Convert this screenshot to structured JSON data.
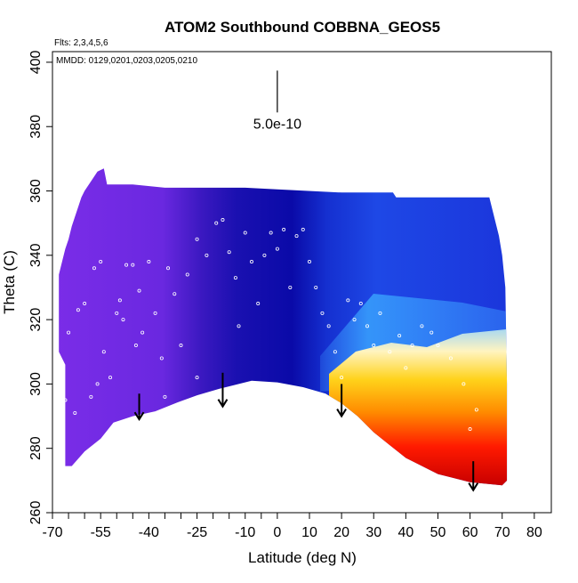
{
  "chart_data": {
    "type": "curtain",
    "title": "ATOM2 Southbound COBBNA_GEOS5",
    "annotations": [
      "Flts: 2,3,4,5,6",
      "MMDD: 0129,0201,0203,0205,0210"
    ],
    "xlabel": "Latitude (deg N)",
    "ylabel": "Theta (C)",
    "xlim": [
      -70,
      85.3
    ],
    "ylim": [
      260,
      403.3
    ],
    "xticks": [
      -70,
      -55,
      -40,
      -25,
      -10,
      0,
      10,
      20,
      30,
      40,
      50,
      60,
      70,
      80
    ],
    "xminorticks": [
      -65,
      -60,
      -50,
      -45,
      -35,
      -30,
      -20,
      -15,
      -5
    ],
    "yticks": [
      260,
      280,
      300,
      320,
      340,
      360,
      380,
      400
    ],
    "scale_bar": {
      "label": "5.0e-10",
      "x": 0,
      "y": [
        384.4,
        397.4
      ]
    },
    "outline": {
      "x": [
        -68,
        -67,
        -66,
        -65,
        -64,
        -63,
        -62,
        -61,
        -60,
        -58,
        -56,
        -54,
        -53,
        -45,
        -35,
        -25,
        -10,
        0,
        20,
        36,
        37,
        66,
        67,
        68,
        69,
        70,
        71,
        71.5,
        71.5,
        70,
        60,
        50,
        40,
        35,
        30,
        25,
        20,
        15,
        8,
        0,
        -8,
        -18,
        -25,
        -31,
        -38,
        -45,
        -51,
        -55,
        -60,
        -64,
        -66,
        -66,
        -68
      ],
      "y": [
        334,
        338,
        342,
        345,
        349,
        352,
        355,
        358,
        360,
        363,
        366,
        367,
        362,
        362,
        361,
        361,
        361,
        360.5,
        359.5,
        359.5,
        358,
        358,
        354,
        350,
        346,
        340,
        330,
        300,
        270,
        268.5,
        269.5,
        272,
        277,
        281,
        285,
        290,
        294,
        297,
        299,
        300.5,
        301,
        298.5,
        296.5,
        294.3,
        291.5,
        290,
        288,
        283,
        279,
        274.5,
        274.5,
        306,
        310
      ]
    },
    "arrows": {
      "x": [
        -43,
        -17,
        20,
        61
      ],
      "y_top": [
        297,
        303.5,
        300,
        276
      ],
      "y_bottom": [
        289,
        293,
        290,
        267
      ]
    },
    "points": {
      "color": "#ffffff",
      "x": [
        -65,
        -62,
        -60,
        -57,
        -55,
        -54,
        -52,
        -50,
        -49,
        -48,
        -47,
        -45,
        -43,
        -42,
        -40,
        -38,
        -36,
        -34,
        -32,
        -30,
        -28,
        -25,
        -22,
        -19,
        -17,
        -15,
        -13,
        -10,
        -8,
        -6,
        -4,
        -2,
        0,
        2,
        4,
        6,
        8,
        10,
        12,
        14,
        16,
        18,
        20,
        22,
        24,
        26,
        28,
        30,
        32,
        35,
        38,
        40,
        42,
        45,
        48,
        50,
        54,
        58,
        60,
        62,
        -66,
        -63,
        -58,
        -56,
        -44,
        -35,
        -25,
        -12
      ],
      "y": [
        316,
        323,
        325,
        336,
        338,
        310,
        302,
        322,
        326,
        320,
        337,
        337,
        329,
        316,
        338,
        322,
        308,
        336,
        328,
        312,
        334,
        345,
        340,
        350,
        351,
        341,
        333,
        347,
        338,
        325,
        340,
        347,
        342,
        348,
        330,
        346,
        348,
        338,
        330,
        322,
        318,
        310,
        302,
        326,
        320,
        325,
        318,
        312,
        322,
        310,
        315,
        305,
        312,
        318,
        316,
        312,
        308,
        300,
        286,
        292,
        295,
        291,
        296,
        300,
        312,
        296,
        302,
        318
      ]
    }
  }
}
